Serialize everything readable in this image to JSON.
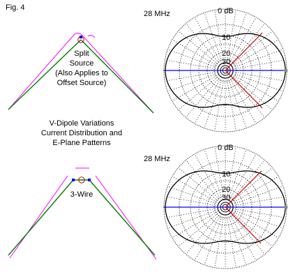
{
  "figure": {
    "label": "Fig. 4",
    "caption": {
      "line1": "V-Dipole Variations",
      "line2": "Current Distribution and",
      "line3": "E-Plane Patterns"
    },
    "top_antenna": {
      "line1": "Split",
      "line2": "Source",
      "line3": "(Also Applies to",
      "line4": "Offset Source)"
    },
    "bottom_antenna": {
      "label": "3-Wire"
    },
    "top_pattern": {
      "frequency": "28 MHz",
      "ring_labels": [
        "0 dB",
        "10",
        "20",
        "30"
      ]
    },
    "bottom_pattern": {
      "frequency": "28 MHz",
      "ring_labels": [
        "0 dB",
        "10",
        "20",
        "30"
      ]
    },
    "colors": {
      "wire": "#008000",
      "current": "#ff00ff",
      "azimuth_line": "#0000ff",
      "elevation_line": "#cc0000",
      "source": "#cc0000",
      "junction": "#0000ff",
      "pattern": "#000000"
    }
  }
}
